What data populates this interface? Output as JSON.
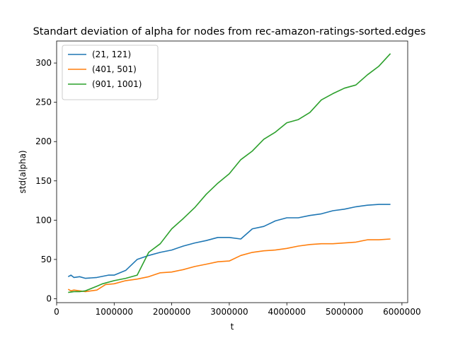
{
  "chart_data": {
    "type": "line",
    "title": "Standart deviation of alpha for nodes from rec-amazon-ratings-sorted.edges",
    "xlabel": "t",
    "ylabel": "std(alpha)",
    "xlim": [
      0,
      6100000
    ],
    "ylim": [
      -5,
      328
    ],
    "xticks": [
      0,
      1000000,
      2000000,
      3000000,
      4000000,
      5000000,
      6000000
    ],
    "xtick_labels": [
      "0",
      "1000000",
      "2000000",
      "3000000",
      "4000000",
      "5000000",
      "6000000"
    ],
    "yticks": [
      0,
      50,
      100,
      150,
      200,
      250,
      300
    ],
    "ytick_labels": [
      "0",
      "50",
      "100",
      "150",
      "200",
      "250",
      "300"
    ],
    "legend_position": "top-left",
    "grid": false,
    "series": [
      {
        "name": "(21, 121)",
        "color": "#1f77b4",
        "x": [
          200000,
          250000,
          300000,
          400000,
          500000,
          700000,
          900000,
          1000000,
          1200000,
          1400000,
          1600000,
          1800000,
          2000000,
          2200000,
          2400000,
          2600000,
          2800000,
          3000000,
          3200000,
          3400000,
          3600000,
          3800000,
          4000000,
          4200000,
          4400000,
          4600000,
          4800000,
          5000000,
          5200000,
          5400000,
          5600000,
          5800000
        ],
        "y": [
          28,
          30,
          27,
          28,
          26,
          27,
          30,
          30,
          36,
          50,
          55,
          59,
          62,
          67,
          71,
          74,
          78,
          78,
          76,
          89,
          92,
          99,
          103,
          103,
          106,
          108,
          112,
          114,
          117,
          119,
          120,
          120
        ]
      },
      {
        "name": "(401, 501)",
        "color": "#ff7f0e",
        "x": [
          200000,
          250000,
          300000,
          400000,
          500000,
          700000,
          850000,
          1000000,
          1200000,
          1400000,
          1600000,
          1800000,
          2000000,
          2200000,
          2400000,
          2600000,
          2800000,
          3000000,
          3200000,
          3400000,
          3600000,
          3800000,
          4000000,
          4200000,
          4400000,
          4600000,
          4800000,
          5000000,
          5200000,
          5400000,
          5600000,
          5800000
        ],
        "y": [
          12,
          10,
          11,
          10,
          9,
          11,
          18,
          19,
          23,
          25,
          28,
          33,
          34,
          37,
          41,
          44,
          47,
          48,
          55,
          59,
          61,
          62,
          64,
          67,
          69,
          70,
          70,
          71,
          72,
          75,
          75,
          76
        ]
      },
      {
        "name": "(901, 1001)",
        "color": "#2ca02c",
        "x": [
          200000,
          300000,
          400000,
          500000,
          700000,
          800000,
          1000000,
          1200000,
          1400000,
          1600000,
          1800000,
          2000000,
          2200000,
          2400000,
          2600000,
          2800000,
          3000000,
          3200000,
          3400000,
          3600000,
          3800000,
          4000000,
          4200000,
          4400000,
          4600000,
          4800000,
          5000000,
          5200000,
          5400000,
          5600000,
          5800000
        ],
        "y": [
          8,
          9,
          9,
          10,
          16,
          19,
          23,
          26,
          30,
          59,
          70,
          89,
          102,
          116,
          133,
          147,
          159,
          177,
          188,
          203,
          212,
          224,
          228,
          237,
          253,
          261,
          268,
          272,
          285,
          296,
          312
        ]
      }
    ]
  }
}
